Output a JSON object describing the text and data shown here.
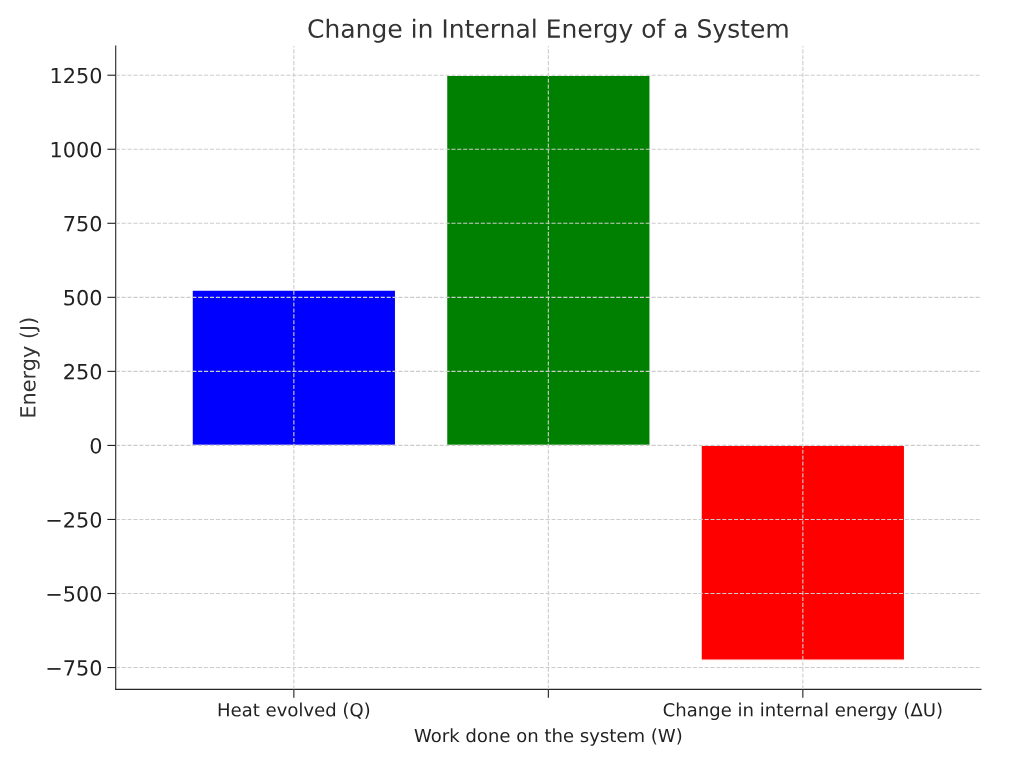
{
  "chart_data": {
    "type": "bar",
    "title": "Change in Internal Energy of a System",
    "ylabel": "Energy (J)",
    "categories": [
      "Heat evolved (Q)",
      "Work done on the system (W)",
      "Change in internal energy (ΔU)"
    ],
    "values": [
      525,
      1250,
      -725
    ],
    "colors": [
      "#0000ff",
      "#008000",
      "#ff0000"
    ],
    "ylim": [
      -823.75,
      1348.75
    ],
    "yticks": [
      -750,
      -500,
      -250,
      0,
      250,
      500,
      750,
      1000,
      1250
    ],
    "grid": true,
    "legend": false
  }
}
